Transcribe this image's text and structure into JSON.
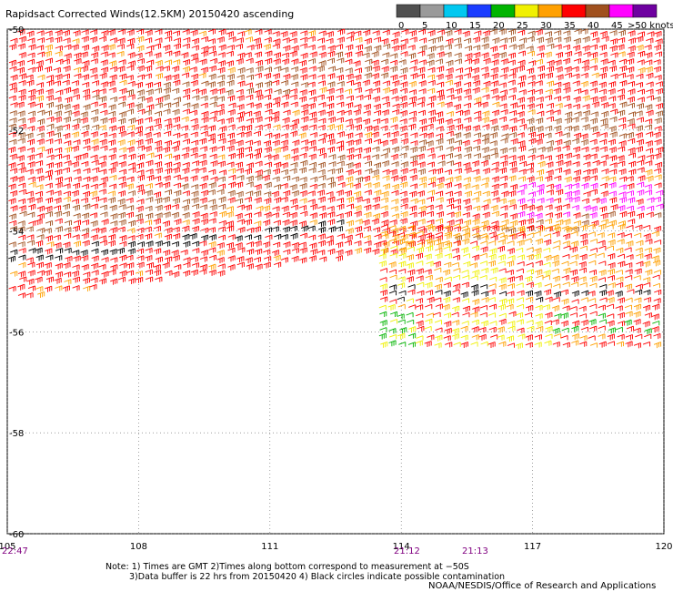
{
  "title": "Rapidsact Corrected Winds(12.5KM) 20150420 ascending",
  "legend": {
    "labels": [
      "0",
      "5",
      "10",
      "15",
      "20",
      "25",
      "30",
      "35",
      "40",
      "45",
      ">50 knots"
    ],
    "colors": [
      "#505050",
      "#9a9a9a",
      "#00c8f0",
      "#1a3cff",
      "#00b400",
      "#f0f000",
      "#ffa000",
      "#ff0000",
      "#a0501e",
      "#ff00ff",
      "#6e00a0"
    ]
  },
  "axes": {
    "x_ticks": [
      "105",
      "108",
      "111",
      "114",
      "117",
      "120"
    ],
    "y_ticks": [
      "-50",
      "-52",
      "-54",
      "-56",
      "-58",
      "-60"
    ],
    "lon_range": [
      105,
      120
    ],
    "lat_range": [
      -60,
      -50
    ]
  },
  "times": [
    "22:47",
    "21:12",
    "21:13"
  ],
  "notes": {
    "line1": "Note: 1) Times are GMT 2)Times along bottom correspond to measurement at −50S",
    "line2": "3)Data buffer is 22 hrs from 20150420 4) Black circles indicate possible contamination",
    "credit": "NOAA/NESDIS/Office of Research and Applications"
  },
  "wind_field": {
    "dominant_colors": [
      "#ff0000",
      "#a0501e",
      "#ffa000",
      "#f0f000",
      "#00b400",
      "#000000",
      "#ff00ff"
    ]
  }
}
